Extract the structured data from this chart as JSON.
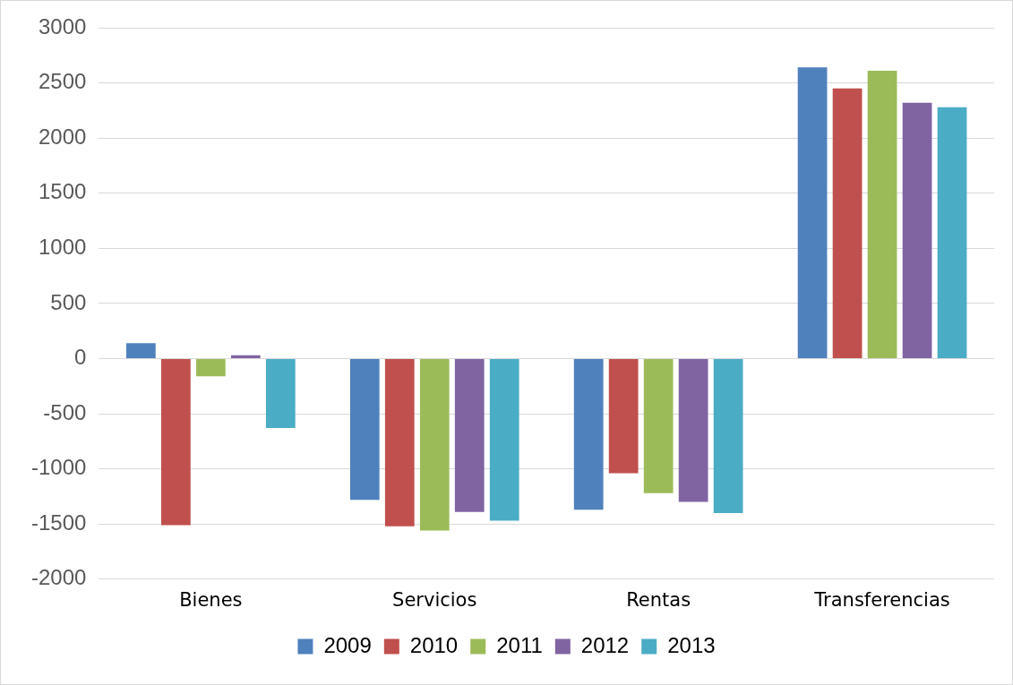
{
  "chart_data": {
    "type": "bar",
    "categories": [
      "Bienes",
      "Servicios",
      "Rentas",
      "Transferencias"
    ],
    "series": [
      {
        "name": "2009",
        "color": "#4f81bd",
        "values": [
          140,
          -1280,
          -1370,
          2640
        ]
      },
      {
        "name": "2010",
        "color": "#c0504d",
        "values": [
          -1510,
          -1520,
          -1040,
          2450
        ]
      },
      {
        "name": "2011",
        "color": "#9bbb59",
        "values": [
          -160,
          -1560,
          -1220,
          2610
        ]
      },
      {
        "name": "2012",
        "color": "#8064a2",
        "values": [
          30,
          -1390,
          -1300,
          2320
        ]
      },
      {
        "name": "2013",
        "color": "#4bacc6",
        "values": [
          -630,
          -1470,
          -1400,
          2280
        ]
      }
    ],
    "ylim": [
      -2000,
      3000
    ],
    "yticks": [
      -2000,
      -1500,
      -1000,
      -500,
      0,
      500,
      1000,
      1500,
      2000,
      2500,
      3000
    ],
    "grid": "y",
    "legend": "bottom"
  }
}
